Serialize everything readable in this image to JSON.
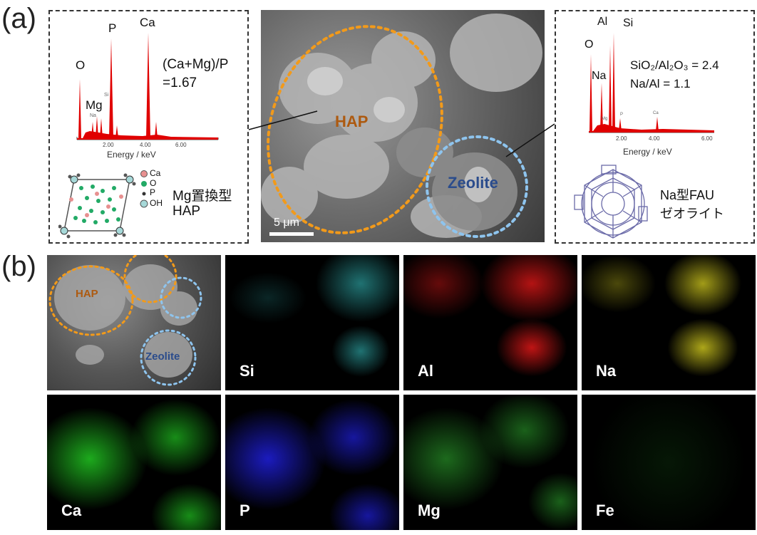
{
  "panel_a": {
    "label": "(a)",
    "left_eds": {
      "peaks": [
        "O",
        "P",
        "Ca",
        "Mg"
      ],
      "small_peaks": [
        "Na",
        "Si"
      ],
      "ticks": [
        "2.00",
        "4.00",
        "6.00"
      ],
      "xlabel": "Energy / keV",
      "ratio_line1": "(Ca+Mg)/P",
      "ratio_line2": "=1.67",
      "legend": [
        "Ca",
        "O",
        "P",
        "OH"
      ],
      "title_line1": "Mg置換型",
      "title_line2": "HAP"
    },
    "sem": {
      "hap_label": "HAP",
      "zeolite_label": "Zeolite",
      "scale_bar": "5 μm"
    },
    "right_eds": {
      "peaks": [
        "Al",
        "Si",
        "O",
        "Na"
      ],
      "small_peaks": [
        "Mg",
        "P",
        "Ca"
      ],
      "ticks": [
        "2.00",
        "4.00",
        "6.00"
      ],
      "xlabel": "Energy / keV",
      "ratio_line1": "SiO₂/Al₂O₃ = 2.4",
      "ratio_line2": "Na/Al = 1.1",
      "title_line1": "Na型FAU",
      "title_line2": "ゼオライト"
    }
  },
  "panel_b": {
    "label": "(b)",
    "sem_hap": "HAP",
    "sem_zeolite": "Zeolite",
    "maps": [
      {
        "element": "Si",
        "color": "#3ad0d0"
      },
      {
        "element": "Al",
        "color": "#e01818"
      },
      {
        "element": "Na",
        "color": "#d8d020"
      },
      {
        "element": "Ca",
        "color": "#22c822"
      },
      {
        "element": "P",
        "color": "#2020e0"
      },
      {
        "element": "Mg",
        "color": "#30b030"
      },
      {
        "element": "Fe",
        "color": "#30c030"
      }
    ]
  },
  "colors": {
    "eds_red": "#e00000",
    "hap_orange": "#f29a1a",
    "zeolite_blue": "#8ec4ee"
  }
}
